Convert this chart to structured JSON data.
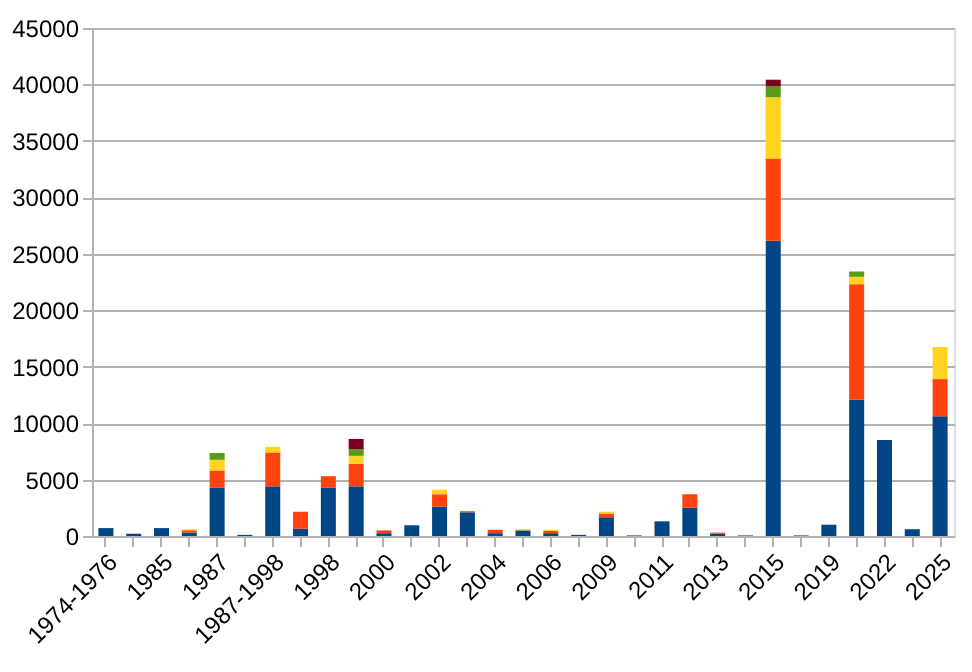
{
  "chart_data": {
    "type": "bar",
    "stacked": true,
    "grid": "y",
    "categories": [
      "1974-1976",
      null,
      "1985",
      null,
      "1987",
      null,
      "1987-1998",
      null,
      "1998",
      null,
      "2000",
      null,
      "2002",
      null,
      "2004",
      null,
      "2006",
      null,
      "2009",
      null,
      "2011",
      null,
      "2013",
      null,
      "2015",
      null,
      "2019",
      null,
      "2022",
      null,
      "2025"
    ],
    "ylim": [
      0,
      45000
    ],
    "yticks": [
      0,
      5000,
      10000,
      15000,
      20000,
      25000,
      30000,
      35000,
      40000,
      45000
    ],
    "series": [
      {
        "color": "#004586",
        "values": [
          700,
          200,
          700,
          300,
          4300,
          100,
          4400,
          650,
          4300,
          4400,
          250,
          950,
          2600,
          2100,
          250,
          500,
          250,
          100,
          1650,
          50,
          1300,
          2500,
          200,
          50,
          26150,
          50,
          1000,
          12070,
          8500,
          600,
          10600
        ]
      },
      {
        "color": "#ff420e",
        "values": [
          null,
          null,
          null,
          200,
          1500,
          null,
          3000,
          1500,
          1000,
          2000,
          250,
          null,
          1100,
          100,
          300,
          null,
          200,
          null,
          350,
          null,
          null,
          1200,
          100,
          null,
          7280,
          null,
          null,
          10240,
          null,
          null,
          3300
        ]
      },
      {
        "color": "#ffd320",
        "values": [
          null,
          null,
          null,
          100,
          950,
          null,
          500,
          null,
          null,
          700,
          null,
          null,
          400,
          null,
          null,
          100,
          100,
          null,
          150,
          null,
          null,
          null,
          null,
          null,
          5440,
          null,
          null,
          650,
          null,
          null,
          2840
        ]
      },
      {
        "color": "#579d1c",
        "values": [
          null,
          null,
          null,
          null,
          600,
          null,
          null,
          null,
          null,
          600,
          null,
          null,
          null,
          null,
          null,
          null,
          null,
          null,
          null,
          null,
          null,
          null,
          null,
          null,
          950,
          null,
          null,
          470,
          null,
          null,
          null
        ]
      },
      {
        "color": "#7e0021",
        "values": [
          null,
          null,
          null,
          null,
          null,
          null,
          null,
          null,
          null,
          900,
          null,
          null,
          null,
          null,
          null,
          null,
          null,
          null,
          null,
          null,
          null,
          null,
          null,
          null,
          600,
          null,
          null,
          null,
          null,
          null,
          null
        ]
      }
    ]
  }
}
